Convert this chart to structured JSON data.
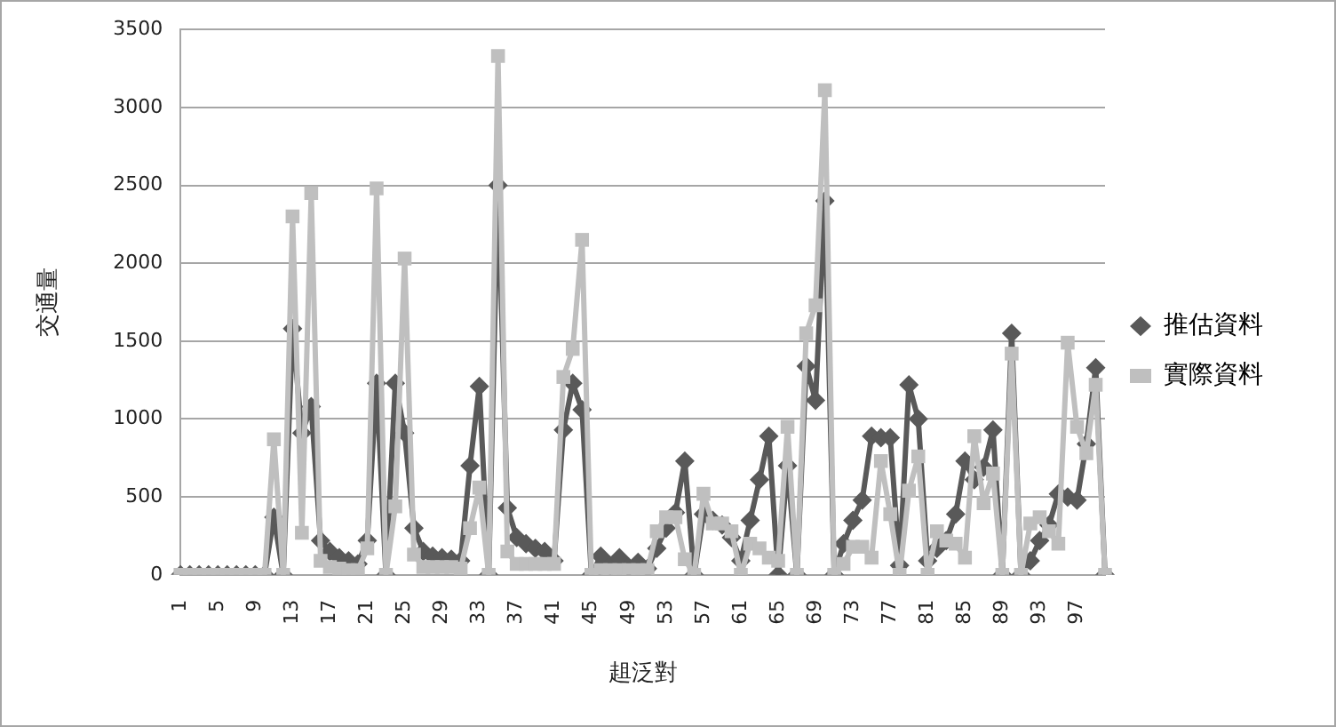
{
  "chart_data": {
    "type": "line",
    "xlabel": "趄泛對",
    "ylabel": "交通量",
    "categories": [
      "1",
      null,
      null,
      null,
      "5",
      null,
      null,
      null,
      "9",
      null,
      null,
      null,
      "13",
      null,
      null,
      null,
      "17",
      null,
      null,
      null,
      "21",
      null,
      null,
      null,
      "25",
      null,
      null,
      null,
      "29",
      null,
      null,
      null,
      "33",
      null,
      null,
      null,
      "37",
      null,
      null,
      null,
      "41",
      null,
      null,
      null,
      "45",
      null,
      null,
      null,
      "49",
      null,
      null,
      null,
      "53",
      null,
      null,
      null,
      "57",
      null,
      null,
      null,
      "61",
      null,
      null,
      null,
      "65",
      null,
      null,
      null,
      "69",
      null,
      null,
      null,
      "73",
      null,
      null,
      null,
      "77",
      null,
      null,
      null,
      "81",
      null,
      null,
      null,
      "85",
      null,
      null,
      null,
      "89",
      null,
      null,
      null,
      "93",
      null,
      null,
      null,
      "97",
      null,
      null,
      null
    ],
    "series": [
      {
        "name": "推估資料",
        "color": "#595959",
        "marker": "diamond",
        "values": [
          0,
          0,
          0,
          0,
          0,
          0,
          0,
          0,
          0,
          0,
          370,
          0,
          1580,
          910,
          1080,
          220,
          150,
          110,
          90,
          70,
          220,
          1230,
          0,
          1230,
          910,
          300,
          150,
          120,
          110,
          100,
          90,
          700,
          1210,
          0,
          2500,
          430,
          240,
          200,
          170,
          150,
          90,
          930,
          1230,
          1060,
          0,
          120,
          60,
          110,
          50,
          80,
          40,
          170,
          300,
          400,
          730,
          0,
          390,
          350,
          320,
          240,
          90,
          350,
          610,
          890,
          0,
          700,
          0,
          1340,
          1120,
          2400,
          0,
          200,
          350,
          480,
          890,
          880,
          880,
          60,
          1220,
          1000,
          90,
          170,
          220,
          390,
          730,
          610,
          690,
          930,
          0,
          1550,
          0,
          90,
          220,
          320,
          520,
          500,
          480,
          840,
          1330,
          0
        ]
      },
      {
        "name": "實際資料",
        "color": "#bfbfbf",
        "marker": "square",
        "values": [
          0,
          0,
          0,
          0,
          0,
          0,
          0,
          0,
          0,
          0,
          870,
          0,
          2300,
          270,
          2450,
          90,
          50,
          40,
          30,
          30,
          170,
          2480,
          0,
          440,
          2030,
          130,
          50,
          50,
          50,
          50,
          40,
          300,
          560,
          0,
          3330,
          150,
          70,
          70,
          70,
          70,
          70,
          1270,
          1450,
          2150,
          0,
          30,
          30,
          30,
          30,
          30,
          30,
          280,
          370,
          370,
          100,
          0,
          520,
          330,
          330,
          280,
          0,
          200,
          170,
          110,
          90,
          950,
          0,
          1550,
          1730,
          3110,
          0,
          70,
          180,
          180,
          110,
          730,
          390,
          0,
          540,
          760,
          0,
          280,
          220,
          200,
          110,
          890,
          460,
          650,
          0,
          1420,
          0,
          330,
          370,
          280,
          200,
          1490,
          950,
          780,
          1220,
          0
        ]
      }
    ],
    "ylim": [
      0,
      3500
    ],
    "yticks": [
      0,
      500,
      1000,
      1500,
      2000,
      2500,
      3000,
      3500
    ],
    "grid": "y",
    "legend": "right"
  }
}
